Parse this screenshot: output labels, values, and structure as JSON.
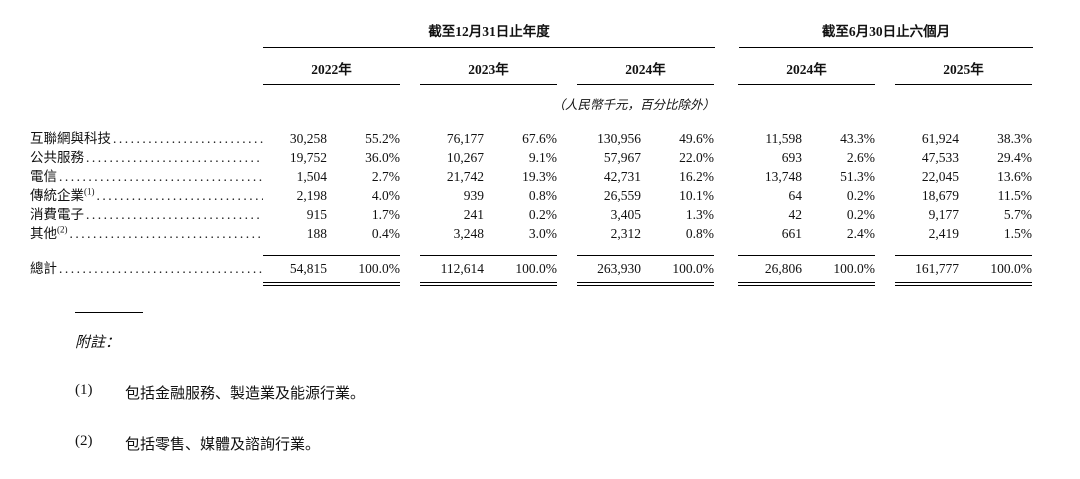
{
  "table": {
    "groups": [
      {
        "label": "截至12月31日止年度"
      },
      {
        "label": "截至6月30日止六個月"
      }
    ],
    "years": [
      "2022年",
      "2023年",
      "2024年",
      "2024年",
      "2025年"
    ],
    "unit_note": "（人民幣千元，百分比除外）",
    "rows": [
      {
        "label": "互聯網與科技",
        "sup": "",
        "cells": [
          "30,258",
          "55.2%",
          "76,177",
          "67.6%",
          "130,956",
          "49.6%",
          "11,598",
          "43.3%",
          "61,924",
          "38.3%"
        ]
      },
      {
        "label": "公共服務",
        "sup": "",
        "cells": [
          "19,752",
          "36.0%",
          "10,267",
          "9.1%",
          "57,967",
          "22.0%",
          "693",
          "2.6%",
          "47,533",
          "29.4%"
        ]
      },
      {
        "label": "電信",
        "sup": "",
        "cells": [
          "1,504",
          "2.7%",
          "21,742",
          "19.3%",
          "42,731",
          "16.2%",
          "13,748",
          "51.3%",
          "22,045",
          "13.6%"
        ]
      },
      {
        "label": "傳統企業",
        "sup": "(1)",
        "cells": [
          "2,198",
          "4.0%",
          "939",
          "0.8%",
          "26,559",
          "10.1%",
          "64",
          "0.2%",
          "18,679",
          "11.5%"
        ]
      },
      {
        "label": "消費電子",
        "sup": "",
        "cells": [
          "915",
          "1.7%",
          "241",
          "0.2%",
          "3,405",
          "1.3%",
          "42",
          "0.2%",
          "9,177",
          "5.7%"
        ]
      },
      {
        "label": "其他",
        "sup": "(2)",
        "cells": [
          "188",
          "0.4%",
          "3,248",
          "3.0%",
          "2,312",
          "0.8%",
          "661",
          "2.4%",
          "2,419",
          "1.5%"
        ]
      }
    ],
    "total": {
      "label": "總計",
      "cells": [
        "54,815",
        "100.0%",
        "112,614",
        "100.0%",
        "263,930",
        "100.0%",
        "26,806",
        "100.0%",
        "161,777",
        "100.0%"
      ]
    }
  },
  "notes": {
    "heading": "附註：",
    "items": [
      {
        "num": "(1)",
        "text": "包括金融服務、製造業及能源行業。"
      },
      {
        "num": "(2)",
        "text": "包括零售、媒體及諮詢行業。"
      }
    ]
  }
}
